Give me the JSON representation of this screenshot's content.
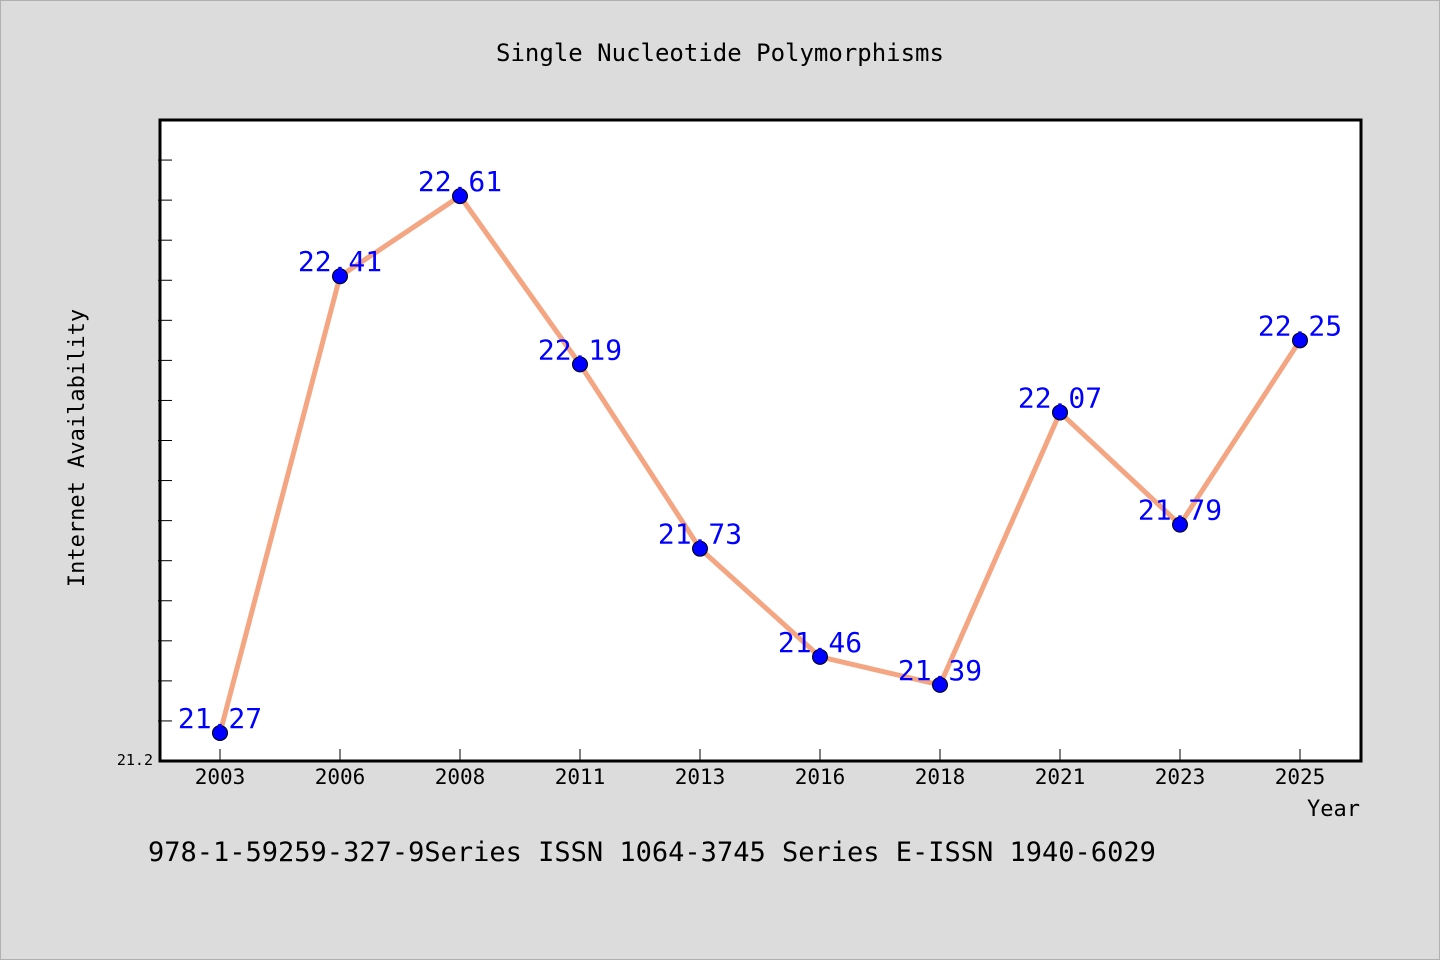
{
  "chart_data": {
    "type": "line",
    "title": "Single Nucleotide Polymorphisms",
    "xlabel": "Year",
    "ylabel": "Internet Availability",
    "categories": [
      "2003",
      "2006",
      "2008",
      "2011",
      "2013",
      "2016",
      "2018",
      "2021",
      "2023",
      "2025"
    ],
    "series": [
      {
        "values": [
          21.27,
          22.41,
          22.61,
          22.19,
          21.73,
          21.46,
          21.39,
          22.07,
          21.79,
          22.25
        ]
      }
    ],
    "data_labels": [
      "21.27",
      "22.41",
      "22.61",
      "22.19",
      "21.73",
      "21.46",
      "21.39",
      "22.07",
      "21.79",
      "22.25"
    ],
    "ylim": [
      21.2,
      22.8
    ],
    "y_tick_labels": [
      "21.2"
    ],
    "grid": false,
    "legend": "none",
    "footer": "978-1-59259-327-9Series ISSN 1064-3745 Series E-ISSN 1940-6029",
    "colors": {
      "background": "#dcdcdc",
      "plot_background": "#ffffff",
      "line": "#f4a582",
      "marker": "#0000ff",
      "data_label": "#0000ff",
      "text": "#000000"
    }
  }
}
